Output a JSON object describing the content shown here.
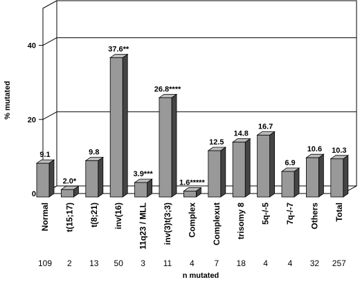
{
  "chart_data": {
    "type": "bar3d",
    "ylabel": "% mutated",
    "categories": [
      "Normal",
      "t(15;17)",
      "t(8;21)",
      "inv(16)",
      "11q23 / MLL",
      "inv(3)t(3;3)",
      "Complex",
      "Complexut",
      "trisomy 8",
      "5q-/-5",
      "7q-/-7",
      "Others",
      "Total"
    ],
    "values": [
      9.1,
      2.0,
      9.8,
      37.6,
      3.9,
      26.8,
      1.6,
      12.5,
      14.8,
      16.7,
      6.9,
      10.6,
      10.3
    ],
    "value_labels": [
      "9.1",
      "2.0*",
      "9.8",
      "37.6**",
      "3.9***",
      "26.8****",
      "1.6*****",
      "12.5",
      "14.8",
      "16.7",
      "6.9",
      "10.6",
      "10.3"
    ],
    "n_values": [
      109,
      2,
      13,
      50,
      3,
      11,
      4,
      7,
      18,
      4,
      4,
      32,
      257
    ],
    "n_label": "n mutated",
    "color": "#999999",
    "ylim": [
      0,
      50
    ],
    "yticks": [
      0,
      20,
      40
    ],
    "grid": true
  }
}
